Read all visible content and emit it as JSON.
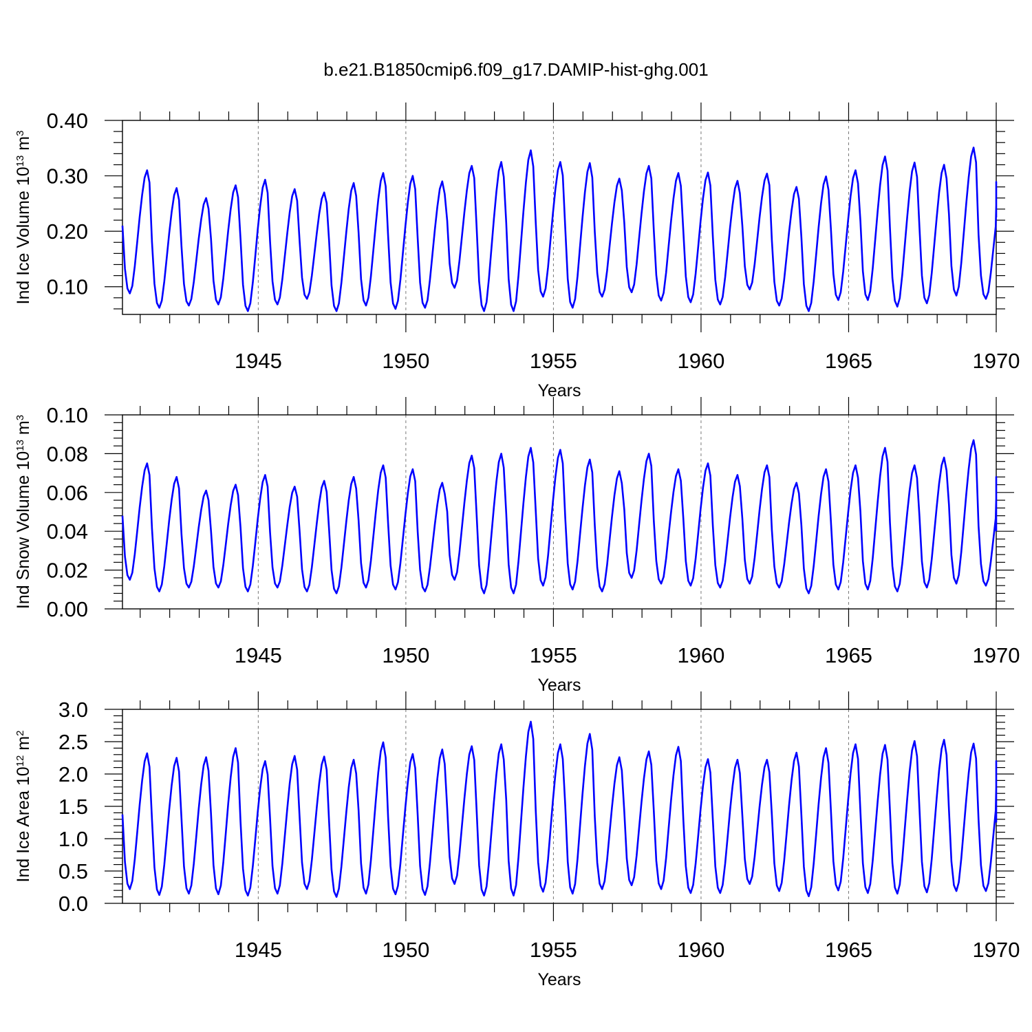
{
  "chart_data": [
    {
      "type": "line",
      "title": "b.e21.B1850cmip6.f09_g17.DAMIP-hist-ghg.001",
      "xlabel": "Years",
      "ylabel": "Ind Ice Volume 10^13 m^3",
      "ylabel_main": "Ind Ice Volume 10",
      "ylabel_exp": "13",
      "ylabel_unit": " m",
      "ylabel_unit_exp": "3",
      "xlim": [
        1940.4,
        1970.0
      ],
      "ylim": [
        0.05,
        0.4
      ],
      "x_ticks": [
        1945,
        1950,
        1955,
        1960,
        1965,
        1970
      ],
      "x_tick_labels": [
        "1945",
        "1950",
        "1955",
        "1960",
        "1965",
        "1970"
      ],
      "y_ticks": [
        0.1,
        0.2,
        0.3,
        0.4
      ],
      "y_tick_labels": [
        "0.10",
        "0.20",
        "0.30",
        "0.40"
      ],
      "grid": "vertical dashed at x ticks",
      "series": [
        {
          "name": "Ind Ice Volume",
          "color": "#0000ff",
          "x_start": 1940.4,
          "step": 0.083333,
          "annual_min": [
            0.088,
            0.062,
            0.066,
            0.068,
            0.056,
            0.068,
            0.078,
            0.056,
            0.066,
            0.06,
            0.062,
            0.098,
            0.056,
            0.056,
            0.082,
            0.062,
            0.082,
            0.09,
            0.075,
            0.072,
            0.068,
            0.095,
            0.066,
            0.056,
            0.076,
            0.076,
            0.064,
            0.07,
            0.084,
            0.078
          ],
          "annual_max": [
            0.31,
            0.278,
            0.26,
            0.283,
            0.293,
            0.276,
            0.27,
            0.287,
            0.305,
            0.3,
            0.29,
            0.318,
            0.325,
            0.346,
            0.325,
            0.323,
            0.295,
            0.318,
            0.305,
            0.306,
            0.291,
            0.304,
            0.28,
            0.299,
            0.31,
            0.335,
            0.324,
            0.32,
            0.351,
            0.289
          ],
          "end_value": 0.225
        }
      ]
    },
    {
      "type": "line",
      "xlabel": "Years",
      "ylabel": "Ind Snow Volume 10^13 m^3",
      "ylabel_main": "Ind Snow Volume 10",
      "ylabel_exp": "13",
      "ylabel_unit": " m",
      "ylabel_unit_exp": "3",
      "xlim": [
        1940.4,
        1970.0
      ],
      "ylim": [
        0.0,
        0.1
      ],
      "x_ticks": [
        1945,
        1950,
        1955,
        1960,
        1965,
        1970
      ],
      "x_tick_labels": [
        "1945",
        "1950",
        "1955",
        "1960",
        "1965",
        "1970"
      ],
      "y_ticks": [
        0.0,
        0.02,
        0.04,
        0.06,
        0.08,
        0.1
      ],
      "y_tick_labels": [
        "0.00",
        "0.02",
        "0.04",
        "0.06",
        "0.08",
        "0.10"
      ],
      "grid": "vertical dashed at x ticks",
      "series": [
        {
          "name": "Ind Snow Volume",
          "color": "#0000ff",
          "x_start": 1940.4,
          "step": 0.083333,
          "annual_min": [
            0.015,
            0.009,
            0.011,
            0.011,
            0.009,
            0.011,
            0.009,
            0.008,
            0.011,
            0.01,
            0.009,
            0.015,
            0.008,
            0.008,
            0.012,
            0.01,
            0.009,
            0.016,
            0.013,
            0.012,
            0.011,
            0.013,
            0.011,
            0.008,
            0.01,
            0.01,
            0.009,
            0.011,
            0.013,
            0.012
          ],
          "annual_max": [
            0.075,
            0.068,
            0.061,
            0.064,
            0.069,
            0.063,
            0.066,
            0.068,
            0.074,
            0.072,
            0.065,
            0.079,
            0.08,
            0.083,
            0.082,
            0.077,
            0.071,
            0.08,
            0.072,
            0.075,
            0.069,
            0.074,
            0.065,
            0.072,
            0.074,
            0.083,
            0.074,
            0.078,
            0.087,
            0.068
          ],
          "end_value": 0.04
        }
      ]
    },
    {
      "type": "line",
      "xlabel": "Years",
      "ylabel": "Ind Ice Area 10^12 m^2",
      "ylabel_main": "Ind Ice Area 10",
      "ylabel_exp": "12",
      "ylabel_unit": " m",
      "ylabel_unit_exp": "2",
      "xlim": [
        1940.4,
        1970.0
      ],
      "ylim": [
        0.0,
        3.0
      ],
      "x_ticks": [
        1945,
        1950,
        1955,
        1960,
        1965,
        1970
      ],
      "x_tick_labels": [
        "1945",
        "1950",
        "1955",
        "1960",
        "1965",
        "1970"
      ],
      "y_ticks": [
        0.0,
        0.5,
        1.0,
        1.5,
        2.0,
        2.5,
        3.0
      ],
      "y_tick_labels": [
        "0.0",
        "0.5",
        "1.0",
        "1.5",
        "2.0",
        "2.5",
        "3.0"
      ],
      "grid": "vertical dashed at x ticks",
      "series": [
        {
          "name": "Ind Ice Area",
          "color": "#0000ff",
          "x_start": 1940.4,
          "step": 0.083333,
          "annual_min": [
            0.22,
            0.13,
            0.15,
            0.14,
            0.12,
            0.15,
            0.22,
            0.1,
            0.15,
            0.14,
            0.13,
            0.3,
            0.12,
            0.12,
            0.18,
            0.15,
            0.22,
            0.28,
            0.22,
            0.16,
            0.16,
            0.3,
            0.19,
            0.11,
            0.2,
            0.16,
            0.15,
            0.17,
            0.19,
            0.19
          ],
          "annual_max": [
            2.32,
            2.25,
            2.26,
            2.4,
            2.2,
            2.28,
            2.27,
            2.22,
            2.49,
            2.31,
            2.38,
            2.43,
            2.46,
            2.81,
            2.46,
            2.62,
            2.26,
            2.35,
            2.42,
            2.23,
            2.22,
            2.22,
            2.33,
            2.4,
            2.46,
            2.45,
            2.51,
            2.53,
            2.47,
            2.2
          ],
          "end_value": 1.25
        }
      ]
    }
  ]
}
